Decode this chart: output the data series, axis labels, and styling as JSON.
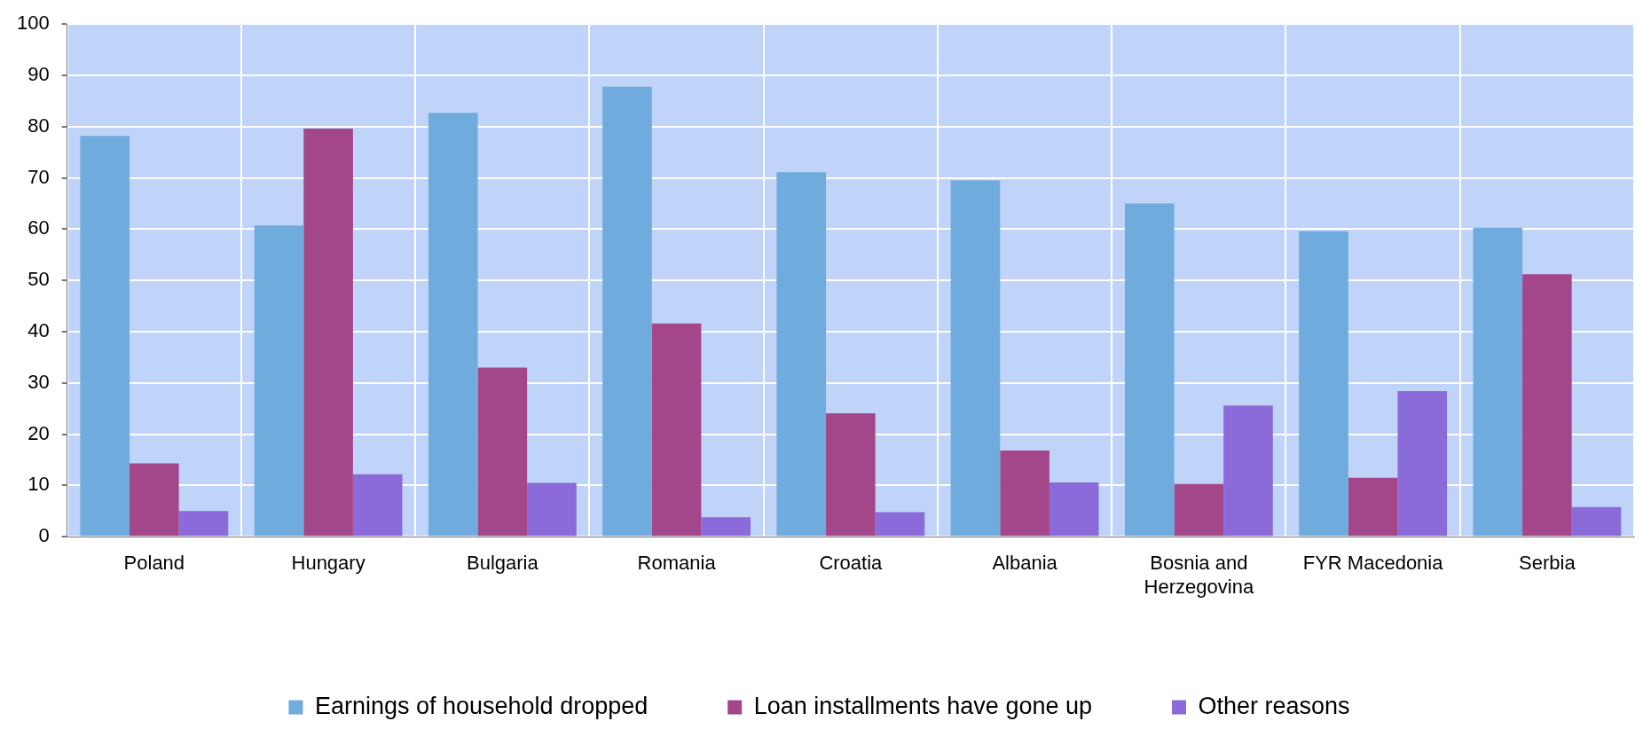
{
  "chart_data": {
    "type": "bar",
    "categories": [
      "Poland",
      "Hungary",
      "Bulgaria",
      "Romania",
      "Croatia",
      "Albania",
      "Bosnia and Herzegovina",
      "FYR Macedonia",
      "Serbia"
    ],
    "series": [
      {
        "name": "Earnings of household dropped",
        "color": "#6fabdc",
        "values": [
          78.2,
          60.7,
          82.7,
          87.8,
          71.1,
          69.5,
          65.0,
          59.6,
          60.3
        ]
      },
      {
        "name": "Loan installments have gone up",
        "color": "#a3468a",
        "values": [
          14.3,
          79.6,
          33.0,
          41.6,
          24.1,
          16.8,
          10.3,
          11.5,
          51.2
        ]
      },
      {
        "name": "Other reasons",
        "color": "#8a6bd9",
        "values": [
          5.0,
          12.2,
          10.5,
          3.8,
          4.8,
          10.6,
          25.6,
          28.4,
          5.8
        ]
      }
    ],
    "ylim": [
      0,
      100
    ],
    "yticks": [
      0,
      10,
      20,
      30,
      40,
      50,
      60,
      70,
      80,
      90,
      100
    ],
    "grid": true,
    "legend": "bottom"
  }
}
